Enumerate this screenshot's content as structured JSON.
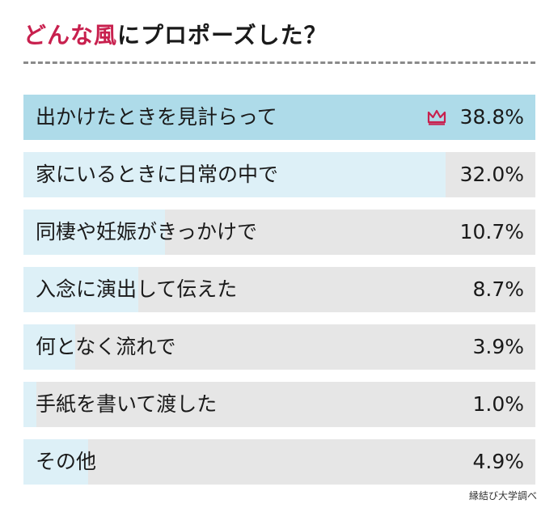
{
  "title": {
    "accent": "どんな風",
    "rest": "にプロポーズした？"
  },
  "source": "縁結び大学調べ",
  "colors": {
    "accent": "#c8204e",
    "top_bar": "#aedbe9",
    "bar": "#ddf0f7",
    "track": "#e6e6e6"
  },
  "top_icon": "crown-icon",
  "chart_data": {
    "type": "bar",
    "orientation": "horizontal",
    "categories": [
      "出かけたときを見計らって",
      "家にいるときに日常の中で",
      "同棲や妊娠がきっかけで",
      "入念に演出して伝えた",
      "何となく流れで",
      "手紙を書いて渡した",
      "その他"
    ],
    "values": [
      38.8,
      32.0,
      10.7,
      8.7,
      3.9,
      1.0,
      4.9
    ],
    "value_labels": [
      "38.8%",
      "32.0%",
      "10.7%",
      "8.7%",
      "3.9%",
      "1.0%",
      "4.9%"
    ],
    "xlim": [
      0,
      38.8
    ],
    "title": "どんな風にプロポーズした？",
    "xlabel": "",
    "ylabel": ""
  }
}
